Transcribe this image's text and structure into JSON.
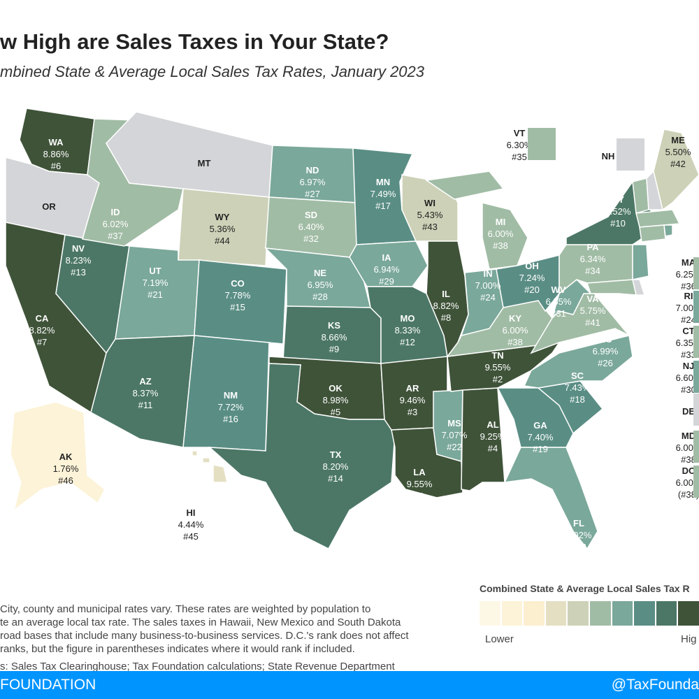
{
  "header": {
    "title": "w High are Sales Taxes in Your State?",
    "subtitle": "mbined State & Average Local Sales Tax Rates, January 2023"
  },
  "palette": [
    "#fdf8e6",
    "#fcf3d8",
    "#fbefd0",
    "#e4dfc2",
    "#cdd1b7",
    "#a1bca5",
    "#7aa89a",
    "#5a8e85",
    "#4c7766",
    "#3f5339"
  ],
  "no_tax_color": "#d4d5d8",
  "states": [
    {
      "abbr": "WA",
      "rate": "8.86%",
      "rank": "#6",
      "tier": 9
    },
    {
      "abbr": "OR",
      "rate": "",
      "rank": "",
      "tier": -1
    },
    {
      "abbr": "CA",
      "rate": "8.82%",
      "rank": "#7",
      "tier": 9
    },
    {
      "abbr": "NV",
      "rate": "8.23%",
      "rank": "#13",
      "tier": 8
    },
    {
      "abbr": "ID",
      "rate": "6.02%",
      "rank": "#37",
      "tier": 5
    },
    {
      "abbr": "MT",
      "rate": "",
      "rank": "",
      "tier": -1
    },
    {
      "abbr": "WY",
      "rate": "5.36%",
      "rank": "#44",
      "tier": 4
    },
    {
      "abbr": "UT",
      "rate": "7.19%",
      "rank": "#21",
      "tier": 6
    },
    {
      "abbr": "CO",
      "rate": "7.78%",
      "rank": "#15",
      "tier": 7
    },
    {
      "abbr": "AZ",
      "rate": "8.37%",
      "rank": "#11",
      "tier": 8
    },
    {
      "abbr": "NM",
      "rate": "7.72%",
      "rank": "#16",
      "tier": 7
    },
    {
      "abbr": "ND",
      "rate": "6.97%",
      "rank": "#27",
      "tier": 6
    },
    {
      "abbr": "SD",
      "rate": "6.40%",
      "rank": "#32",
      "tier": 5
    },
    {
      "abbr": "NE",
      "rate": "6.95%",
      "rank": "#28",
      "tier": 6
    },
    {
      "abbr": "KS",
      "rate": "8.66%",
      "rank": "#9",
      "tier": 8
    },
    {
      "abbr": "OK",
      "rate": "8.98%",
      "rank": "#5",
      "tier": 9
    },
    {
      "abbr": "TX",
      "rate": "8.20%",
      "rank": "#14",
      "tier": 8
    },
    {
      "abbr": "MN",
      "rate": "7.49%",
      "rank": "#17",
      "tier": 7
    },
    {
      "abbr": "IA",
      "rate": "6.94%",
      "rank": "#29",
      "tier": 6
    },
    {
      "abbr": "MO",
      "rate": "8.33%",
      "rank": "#12",
      "tier": 8
    },
    {
      "abbr": "WI",
      "rate": "5.43%",
      "rank": "#43",
      "tier": 4
    },
    {
      "abbr": "IL",
      "rate": "8.82%",
      "rank": "#8",
      "tier": 9
    },
    {
      "abbr": "AR",
      "rate": "9.46%",
      "rank": "#3",
      "tier": 9
    },
    {
      "abbr": "LA",
      "rate": "9.55%",
      "rank": "#1",
      "tier": 9
    },
    {
      "abbr": "MS",
      "rate": "7.07%",
      "rank": "#22",
      "tier": 6
    },
    {
      "abbr": "AL",
      "rate": "9.25%",
      "rank": "#4",
      "tier": 9
    },
    {
      "abbr": "TN",
      "rate": "9.55%",
      "rank": "#2",
      "tier": 9
    },
    {
      "abbr": "KY",
      "rate": "6.00%",
      "rank": "#38",
      "tier": 5
    },
    {
      "abbr": "IN",
      "rate": "7.00%",
      "rank": "#24",
      "tier": 6
    },
    {
      "abbr": "OH",
      "rate": "7.24%",
      "rank": "#20",
      "tier": 7
    },
    {
      "abbr": "MI",
      "rate": "6.00%",
      "rank": "#38",
      "tier": 5
    },
    {
      "abbr": "GA",
      "rate": "7.40%",
      "rank": "#19",
      "tier": 7
    },
    {
      "abbr": "FL",
      "rate": "7.02%",
      "rank": "#23",
      "tier": 6
    },
    {
      "abbr": "SC",
      "rate": "7.43%",
      "rank": "#18",
      "tier": 7
    },
    {
      "abbr": "NC",
      "rate": "6.99%",
      "rank": "#26",
      "tier": 6
    },
    {
      "abbr": "VA",
      "rate": "5.75%",
      "rank": "#41",
      "tier": 5
    },
    {
      "abbr": "WV",
      "rate": "6.55%",
      "rank": "#31",
      "tier": 6
    },
    {
      "abbr": "PA",
      "rate": "6.34%",
      "rank": "#34",
      "tier": 5
    },
    {
      "abbr": "NY",
      "rate": "8.52%",
      "rank": "#10",
      "tier": 8
    },
    {
      "abbr": "VT",
      "rate": "6.30%",
      "rank": "#35",
      "tier": 5
    },
    {
      "abbr": "NH",
      "rate": "",
      "rank": "",
      "tier": -1
    },
    {
      "abbr": "ME",
      "rate": "5.50%",
      "rank": "#42",
      "tier": 4
    },
    {
      "abbr": "MA",
      "rate": "6.25%",
      "rank": "#36",
      "tier": 5
    },
    {
      "abbr": "RI",
      "rate": "7.00%",
      "rank": "#24",
      "tier": 6
    },
    {
      "abbr": "CT",
      "rate": "6.35%",
      "rank": "#33",
      "tier": 5
    },
    {
      "abbr": "NJ",
      "rate": "6.60%",
      "rank": "#30",
      "tier": 6
    },
    {
      "abbr": "DE",
      "rate": "",
      "rank": "",
      "tier": -1
    },
    {
      "abbr": "MD",
      "rate": "6.00%",
      "rank": "#38",
      "tier": 5
    },
    {
      "abbr": "DC",
      "rate": "6.00%",
      "rank": "(#38)",
      "tier": 5
    },
    {
      "abbr": "AK",
      "rate": "1.76%",
      "rank": "#46",
      "tier": 1
    },
    {
      "abbr": "HI",
      "rate": "4.44%",
      "rank": "#45",
      "tier": 3
    }
  ],
  "notes": [
    "City, county and municipal rates vary. These rates are weighted by population to",
    "te an average local tax rate. The sales taxes in Hawaii, New Mexico and South Dakota",
    "road bases that include many business-to-business services. D.C.'s rank does not affect",
    "ranks, but the figure in parentheses indicates where it would rank if included."
  ],
  "sources": [
    "s: Sales Tax Clearinghouse; Tax Foundation calculations; State Revenue Department",
    "es"
  ],
  "legend": {
    "title": "Combined State & Average Local Sales Tax R",
    "low": "Lower",
    "high": "Hig"
  },
  "footer": {
    "left": "FOUNDATION",
    "right": "@TaxFounda"
  }
}
